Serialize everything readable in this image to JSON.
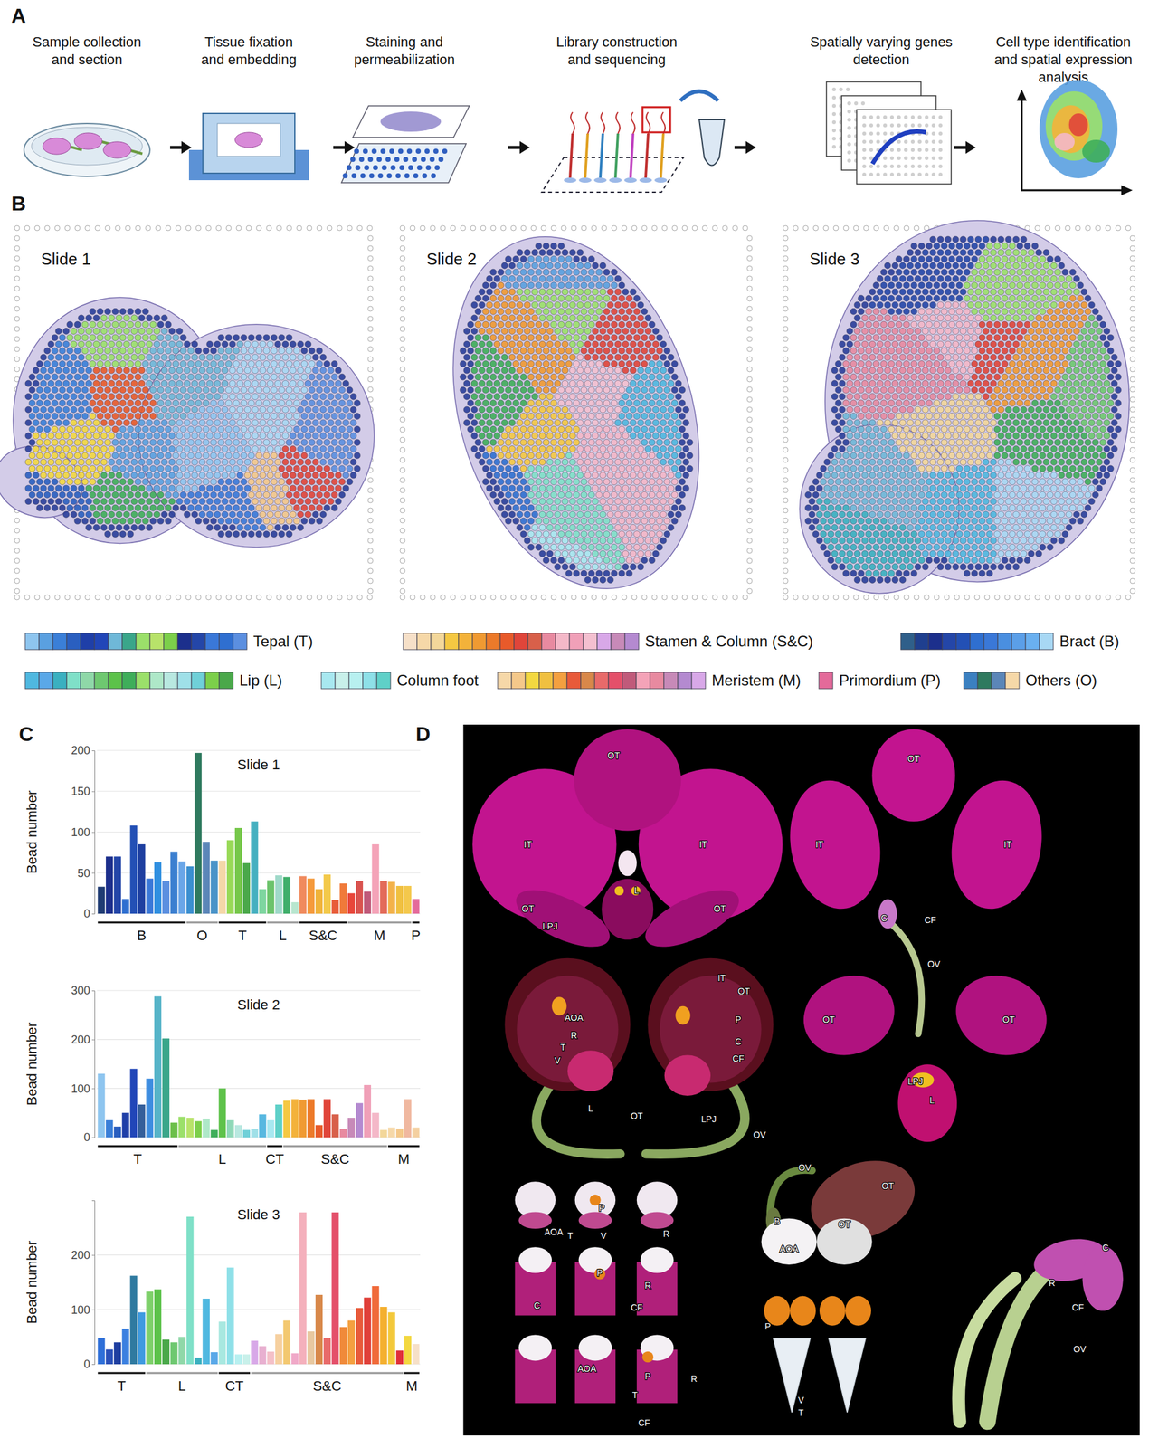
{
  "panel_labels": [
    "A",
    "B",
    "C",
    "D"
  ],
  "workflow": {
    "steps": [
      [
        "Sample collection",
        "and section"
      ],
      [
        "Tissue fixation",
        "and embedding"
      ],
      [
        "Staining and",
        "permeabilization"
      ],
      [
        "Library construction",
        "and sequencing"
      ],
      [
        "Spatially varying genes",
        "detection"
      ],
      [
        "Cell type identification",
        "and spatial expression",
        "analysis"
      ]
    ]
  },
  "slides": {
    "titles": [
      "Slide 1",
      "Slide 2",
      "Slide 3"
    ]
  },
  "legend": [
    {
      "label": "Tepal (T)",
      "colors": [
        "#8ec5ef",
        "#5aa0e0",
        "#3a7fd8",
        "#2a5fc0",
        "#1f3fa8",
        "#2146b8",
        "#6fb8d8",
        "#3aa68a",
        "#9be06a",
        "#b8e36a",
        "#7ccf4a",
        "#1c2f8c",
        "#2446a8",
        "#3a78d8",
        "#2f6fd0",
        "#5b8fe0"
      ]
    },
    {
      "label": "Stamen & Column (S&C)",
      "colors": [
        "#f6e0c8",
        "#f6d8a8",
        "#f3d79a",
        "#f5c842",
        "#f3b23a",
        "#f09a32",
        "#ec7a2a",
        "#e85a2a",
        "#e0453a",
        "#d8604a",
        "#e88aa0",
        "#f4b8c8",
        "#f0a0b8",
        "#f4c0d0",
        "#d8a8e8",
        "#c78ab8",
        "#b48ad0"
      ]
    },
    {
      "label": "Bract (B)",
      "colors": [
        "#2f5f8a",
        "#1f3f8f",
        "#1c2f8c",
        "#2446a8",
        "#2350b5",
        "#2f6fd0",
        "#3a78d8",
        "#4a8fe0",
        "#5b9fe8",
        "#6ab0f0",
        "#a8d8f4"
      ]
    },
    {
      "label": "Lip (L)",
      "colors": [
        "#4fb8e0",
        "#5aa8e8",
        "#3ab0c0",
        "#7fe0c8",
        "#8fd8a8",
        "#6ec870",
        "#5cc24a",
        "#3fae5a",
        "#9be06a",
        "#aee8c8",
        "#b8e8e0",
        "#9fe0e8",
        "#6fd0d8",
        "#7ccf4a",
        "#4aa84a"
      ]
    },
    {
      "label": "Column foot",
      "colors": [
        "#a8e8f0",
        "#c8f0ea",
        "#b8f0f0",
        "#8ee0e8",
        "#5fd0c8"
      ]
    },
    {
      "label": "Meristem (M)",
      "colors": [
        "#f6d8a8",
        "#f4c88a",
        "#f3d840",
        "#f0c040",
        "#f4a040",
        "#e85a3a",
        "#d8884a",
        "#e86a6a",
        "#e4506a",
        "#c05a7a",
        "#f4a3b8",
        "#e88aa0",
        "#c78ab8",
        "#b48ad0",
        "#d8a8e8"
      ]
    },
    {
      "label": "Primordium (P)",
      "colors": [
        "#e46a9a"
      ]
    },
    {
      "label": "Others (O)",
      "colors": [
        "#3b80c0",
        "#2f7a5f",
        "#5b86b8",
        "#f6d8a8"
      ]
    }
  ],
  "chart_data": [
    {
      "type": "bar",
      "title": "Slide 1",
      "y_label": "Bead number",
      "ylim": [
        0,
        200
      ],
      "yticks": [
        0,
        50,
        100,
        150,
        200
      ],
      "grid": true,
      "tick_labels": "y",
      "series": [
        {
          "name": "B",
          "values": [
            33,
            70,
            70,
            18,
            108,
            85,
            43,
            63,
            40,
            76,
            64
          ],
          "colors": [
            "#1f3b73",
            "#1c2f8c",
            "#2446a8",
            "#2f6fd0",
            "#2350b5",
            "#1e3fa0",
            "#3a78d8",
            "#2f8fe0",
            "#5b8fe0",
            "#3b7fd0",
            "#6aa6e8"
          ]
        },
        {
          "name": "O",
          "values": [
            58,
            197,
            88,
            65
          ],
          "colors": [
            "#3b8fd0",
            "#2f7a5f",
            "#5b86b8",
            "#4a93c8"
          ]
        },
        {
          "name": "T",
          "values": [
            65,
            90,
            105,
            62,
            113,
            30
          ],
          "colors": [
            "#f4d7a8",
            "#98d957",
            "#76c74a",
            "#4aa84a",
            "#45b0c0",
            "#7fd6a0"
          ]
        },
        {
          "name": "L",
          "values": [
            41,
            47,
            45,
            14
          ],
          "colors": [
            "#6bc36b",
            "#9fd9c9",
            "#3fae6a",
            "#b8e6cf"
          ]
        },
        {
          "name": "S&C",
          "values": [
            46,
            43,
            30,
            48,
            17,
            37
          ],
          "colors": [
            "#f08a5d",
            "#f59a3b",
            "#f0b33a",
            "#f3c94a",
            "#e85d3a",
            "#f07a3a"
          ]
        },
        {
          "name": "M",
          "values": [
            25,
            40,
            27,
            85,
            40,
            39,
            34,
            34
          ],
          "colors": [
            "#e8463a",
            "#d9534f",
            "#c05a7a",
            "#f4a3b8",
            "#e36b5a",
            "#f3b24a",
            "#f0c040",
            "#f4c84c"
          ]
        },
        {
          "name": "P",
          "values": [
            18
          ],
          "colors": [
            "#e46a9a"
          ]
        }
      ]
    },
    {
      "type": "bar",
      "title": "Slide 2",
      "y_label": "Bead number",
      "ylim": [
        0,
        300
      ],
      "yticks": [
        0,
        100,
        200,
        300
      ],
      "grid": true,
      "tick_labels": "y",
      "series": [
        {
          "name": "T",
          "values": [
            130,
            35,
            22,
            50,
            140,
            67,
            120,
            288,
            202,
            30
          ],
          "colors": [
            "#8ec5ef",
            "#3a7fd8",
            "#2a5fc0",
            "#1f3fa8",
            "#2146b8",
            "#355f9a",
            "#3d8de0",
            "#56b4c8",
            "#3aa68a",
            "#6cbf4a"
          ]
        },
        {
          "name": "L",
          "values": [
            42,
            40,
            33,
            38,
            15,
            100,
            35,
            25,
            15,
            17,
            47
          ],
          "colors": [
            "#9be06a",
            "#b8e36a",
            "#7ccf4a",
            "#aee8c8",
            "#3fae5a",
            "#5ec24a",
            "#8fd8b8",
            "#b8e8e0",
            "#6fd0d8",
            "#9fe0e8",
            "#58b8e0"
          ]
        },
        {
          "name": "CT",
          "values": [
            35,
            67
          ],
          "colors": [
            "#a8e8f0",
            "#5fd0c8"
          ]
        },
        {
          "name": "S&C",
          "values": [
            75,
            78,
            77,
            78,
            25,
            78,
            47,
            17,
            40,
            70,
            107,
            50,
            15
          ],
          "colors": [
            "#f5c842",
            "#f3b23a",
            "#f09a32",
            "#ec7a2a",
            "#e85a2a",
            "#e0453a",
            "#d8604a",
            "#e88aa0",
            "#c78ab8",
            "#b48ad0",
            "#f0a0b8",
            "#f4b8c8",
            "#f3d79a"
          ]
        },
        {
          "name": "M",
          "values": [
            20,
            18,
            78,
            20
          ],
          "colors": [
            "#f6d8a8",
            "#f4c88a",
            "#f0b8a0",
            "#f4d0a0"
          ]
        }
      ]
    },
    {
      "type": "bar",
      "title": "Slide 3",
      "y_label": "Bead number",
      "ylim": [
        0,
        300
      ],
      "yticks": [
        0,
        100,
        200
      ],
      "grid": true,
      "tick_labels": "y",
      "series": [
        {
          "name": "T",
          "values": [
            48,
            27,
            40,
            65,
            162,
            95
          ],
          "colors": [
            "#2e6fd8",
            "#2a50b8",
            "#1f3fa0",
            "#3b80e0",
            "#2f7aa0",
            "#3f9ae0"
          ]
        },
        {
          "name": "L",
          "values": [
            133,
            137,
            45,
            40,
            50,
            270,
            12,
            120,
            22
          ],
          "colors": [
            "#7ed06a",
            "#5cc24a",
            "#4aa84a",
            "#6ec870",
            "#8fd8a8",
            "#7fe0c8",
            "#3ab0c0",
            "#4fb8e0",
            "#5aa8e8"
          ]
        },
        {
          "name": "CT",
          "values": [
            78,
            177,
            18,
            18
          ],
          "colors": [
            "#a8e8e0",
            "#8ee0e8",
            "#b8f0f0",
            "#c8f0ea"
          ]
        },
        {
          "name": "S&C",
          "values": [
            43,
            33,
            23,
            55,
            80,
            20,
            278,
            60,
            127,
            48,
            278,
            68,
            80,
            103,
            122,
            143,
            105,
            95,
            25
          ],
          "colors": [
            "#d8a8e8",
            "#e8b0d0",
            "#f4c0c8",
            "#f6d0a0",
            "#f3c870",
            "#f0a8c8",
            "#f4b0bc",
            "#e8c8a0",
            "#d8884a",
            "#e86a6a",
            "#e4506a",
            "#f08a3a",
            "#f4a040",
            "#e85a3a",
            "#e0403a",
            "#f06a3a",
            "#f4b030",
            "#f3c83a",
            "#e0303a"
          ]
        },
        {
          "name": "M",
          "values": [
            52,
            37
          ],
          "colors": [
            "#f3d840",
            "#f6e0c8"
          ]
        }
      ]
    }
  ],
  "photo_labels": [
    "OT",
    "IT",
    "IT",
    "OT",
    "OT",
    "L",
    "LPJ",
    "OT",
    "IT",
    "IT",
    "C",
    "CF",
    "OV",
    "OT",
    "OT",
    "LPJ",
    "L",
    "AOA",
    "R",
    "T",
    "V",
    "L",
    "OT",
    "LPJ",
    "IT",
    "OT",
    "P",
    "C",
    "CF",
    "OV",
    "OV",
    "OT",
    "OT",
    "B",
    "C",
    "R",
    "CF",
    "OV",
    "AOA",
    "P",
    "T",
    "V",
    "R",
    "C",
    "P",
    "R",
    "CF",
    "AOA",
    "P",
    "T",
    "CF",
    "R",
    "AOA",
    "P",
    "V",
    "T"
  ]
}
